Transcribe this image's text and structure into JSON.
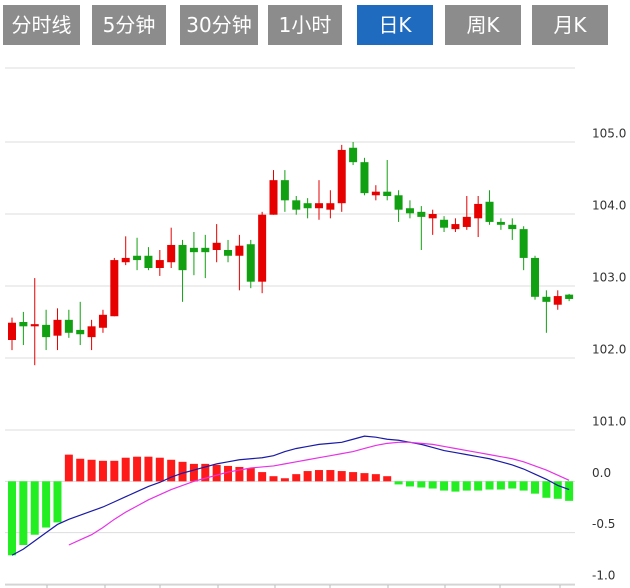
{
  "tabs": [
    "分时线",
    "5分钟",
    "30分钟",
    "1小时",
    "日K",
    "周K",
    "月K"
  ],
  "active_tab": 4,
  "chart_data": [
    {
      "type": "candlestick",
      "up_color": "#e60000",
      "down_color": "#11a011",
      "open": [
        102.25,
        102.5,
        102.44,
        102.46,
        102.31,
        102.53,
        102.39,
        102.29,
        102.42,
        102.58,
        103.33,
        103.42,
        103.42,
        103.25,
        103.33,
        103.57,
        103.53,
        103.53,
        103.5,
        103.5,
        103.42,
        103.58,
        103.06,
        103.99,
        104.47,
        104.19,
        104.15,
        104.08,
        104.06,
        104.15,
        104.92,
        104.72,
        104.26,
        104.31,
        104.26,
        104.08,
        104.03,
        103.94,
        103.92,
        103.79,
        103.82,
        103.94,
        104.17,
        103.89,
        103.85,
        103.79,
        103.39,
        102.85,
        102.74,
        102.88
      ],
      "high": [
        102.56,
        102.64,
        103.11,
        102.67,
        102.69,
        102.67,
        102.78,
        102.53,
        102.67,
        103.39,
        103.69,
        103.67,
        103.54,
        103.5,
        103.81,
        103.64,
        103.75,
        103.71,
        103.86,
        103.64,
        103.71,
        103.64,
        104.03,
        104.61,
        104.61,
        104.25,
        104.22,
        104.47,
        104.33,
        104.96,
        105.0,
        104.78,
        104.4,
        104.75,
        104.33,
        104.19,
        104.11,
        104.06,
        103.97,
        103.94,
        104.25,
        104.25,
        104.33,
        103.94,
        103.94,
        103.83,
        103.42,
        102.94,
        102.94,
        102.89
      ],
      "low": [
        102.11,
        102.18,
        101.9,
        102.11,
        102.11,
        102.28,
        102.18,
        102.11,
        102.35,
        102.58,
        103.29,
        103.22,
        103.22,
        103.14,
        103.25,
        102.78,
        103.15,
        103.11,
        103.33,
        103.33,
        102.94,
        102.97,
        102.9,
        103.99,
        104.03,
        103.99,
        103.94,
        103.92,
        103.94,
        104.03,
        104.68,
        104.26,
        104.19,
        104.19,
        103.89,
        103.94,
        103.5,
        103.71,
        103.75,
        103.75,
        103.78,
        103.68,
        103.85,
        103.78,
        103.64,
        103.22,
        102.81,
        102.35,
        102.67,
        102.79
      ],
      "close": [
        102.49,
        102.44,
        102.47,
        102.29,
        102.53,
        102.35,
        102.33,
        102.44,
        102.6,
        103.36,
        103.39,
        103.36,
        103.25,
        103.36,
        103.57,
        103.22,
        103.47,
        103.47,
        103.6,
        103.42,
        103.56,
        103.06,
        103.99,
        104.47,
        104.19,
        104.06,
        104.08,
        104.15,
        104.15,
        104.89,
        104.72,
        104.29,
        104.31,
        104.25,
        104.06,
        104.01,
        103.96,
        104.0,
        103.81,
        103.86,
        103.96,
        104.14,
        103.89,
        103.85,
        103.79,
        103.39,
        102.85,
        102.78,
        102.86,
        102.82
      ],
      "ylim": [
        101,
        106
      ],
      "yticks": [
        {
          "value": 105,
          "label": "105.0"
        },
        {
          "value": 104,
          "label": "104.0"
        },
        {
          "value": 103,
          "label": "103.0"
        },
        {
          "value": 102,
          "label": "102.0"
        },
        {
          "value": 101,
          "label": "101.0"
        }
      ],
      "grid": true
    },
    {
      "type": "macd",
      "histogram": {
        "up_color": "#ff1a1a",
        "down_color": "#22ee22",
        "values": [
          -0.72,
          -0.62,
          -0.52,
          -0.45,
          -0.4,
          0.26,
          0.22,
          0.21,
          0.2,
          0.2,
          0.23,
          0.24,
          0.24,
          0.23,
          0.21,
          0.19,
          0.17,
          0.17,
          0.16,
          0.15,
          0.14,
          0.13,
          0.09,
          0.05,
          0.03,
          0.07,
          0.1,
          0.11,
          0.11,
          0.1,
          0.09,
          0.08,
          0.07,
          0.05,
          -0.03,
          -0.05,
          -0.06,
          -0.07,
          -0.09,
          -0.1,
          -0.09,
          -0.09,
          -0.08,
          -0.08,
          -0.07,
          -0.09,
          -0.12,
          -0.16,
          -0.17,
          -0.19
        ]
      },
      "series": [
        {
          "color": "#1a1aa6",
          "values": [
            -0.72,
            -0.66,
            -0.58,
            -0.5,
            -0.42,
            -0.37,
            -0.33,
            -0.29,
            -0.25,
            -0.2,
            -0.15,
            -0.1,
            -0.05,
            -0.01,
            0.04,
            0.08,
            0.11,
            0.14,
            0.17,
            0.19,
            0.21,
            0.22,
            0.23,
            0.25,
            0.29,
            0.32,
            0.34,
            0.36,
            0.37,
            0.38,
            0.41,
            0.44,
            0.43,
            0.41,
            0.4,
            0.38,
            0.36,
            0.33,
            0.3,
            0.28,
            0.26,
            0.24,
            0.22,
            0.19,
            0.16,
            0.12,
            0.07,
            0.02,
            -0.04,
            -0.08
          ]
        },
        {
          "color": "#e633e6",
          "values": [
            null,
            null,
            null,
            null,
            null,
            -0.62,
            -0.57,
            -0.52,
            -0.45,
            -0.37,
            -0.3,
            -0.24,
            -0.18,
            -0.13,
            -0.08,
            -0.04,
            0,
            0.03,
            0.06,
            0.09,
            0.11,
            0.13,
            0.14,
            0.15,
            0.17,
            0.19,
            0.21,
            0.23,
            0.25,
            0.27,
            0.29,
            0.32,
            0.35,
            0.37,
            0.38,
            0.38,
            0.37,
            0.36,
            0.34,
            0.32,
            0.3,
            0.28,
            0.26,
            0.24,
            0.22,
            0.19,
            0.15,
            0.11,
            0.06,
            0.01
          ]
        }
      ],
      "ylim": [
        -1.0,
        0.5
      ],
      "yticks": [
        {
          "value": 0,
          "label": "0.0"
        },
        {
          "value": -0.5,
          "label": "-0.5"
        },
        {
          "value": -1.0,
          "label": "-1.0"
        }
      ]
    }
  ]
}
